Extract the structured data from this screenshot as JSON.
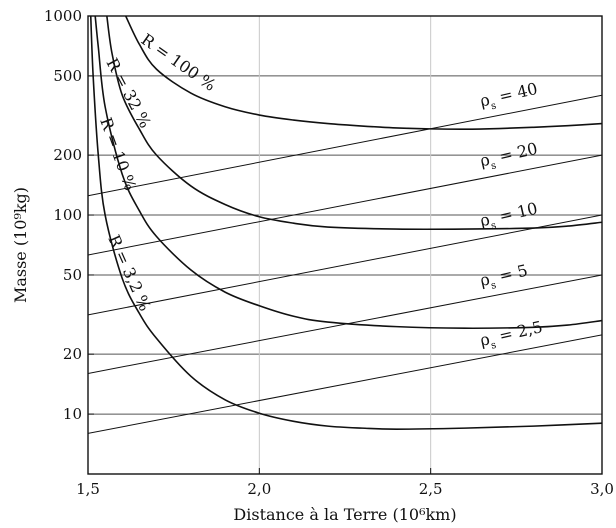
{
  "chart_data": {
    "type": "line",
    "xlabel": "Distance à la Terre (10⁶km)",
    "ylabel": "Masse (10⁹kg)",
    "xlim": [
      1.5,
      3.0
    ],
    "ylim": [
      5,
      1000
    ],
    "yscale": "log",
    "x_ticks": [
      1.5,
      2.0,
      2.5,
      3.0
    ],
    "x_tick_labels": [
      "1,5",
      "2,0",
      "2,5",
      "3,0"
    ],
    "y_ticks": [
      10,
      20,
      50,
      100,
      200,
      500,
      1000
    ],
    "y_tick_labels": [
      "10",
      "20",
      "50",
      "100",
      "200",
      "500",
      "1000"
    ],
    "y_gridlines": [
      10,
      20,
      50,
      100,
      200,
      500
    ],
    "x_gridlines": [
      2.0,
      2.5
    ],
    "series": [
      {
        "name": "R = 100 %",
        "kind": "curve",
        "x": [
          1.61,
          1.65,
          1.7,
          1.8,
          1.9,
          2.0,
          2.1,
          2.2,
          2.3,
          2.4,
          2.5,
          2.6,
          2.7,
          2.8,
          2.9,
          3.0
        ],
        "y": [
          1000,
          720,
          540,
          410,
          350,
          318,
          300,
          288,
          280,
          274,
          271,
          270,
          272,
          276,
          281,
          288
        ]
      },
      {
        "name": "R = 32 %",
        "kind": "curve",
        "x": [
          1.555,
          1.57,
          1.6,
          1.65,
          1.7,
          1.8,
          1.9,
          2.0,
          2.1,
          2.2,
          2.4,
          2.6,
          2.8,
          2.9,
          3.0
        ],
        "y": [
          1000,
          650,
          400,
          270,
          200,
          140,
          113,
          98,
          91,
          87,
          85,
          85,
          86,
          88,
          92
        ]
      },
      {
        "name": "R = 10 %",
        "kind": "curve",
        "x": [
          1.521,
          1.53,
          1.55,
          1.6,
          1.65,
          1.7,
          1.8,
          1.9,
          2.0,
          2.1,
          2.2,
          2.4,
          2.6,
          2.8,
          2.9,
          3.0
        ],
        "y": [
          1000,
          700,
          350,
          160,
          105,
          78,
          53,
          41,
          35,
          31,
          29,
          27.5,
          27,
          27.3,
          28,
          29.5
        ]
      },
      {
        "name": "R = 3,2 %",
        "kind": "curve",
        "x": [
          1.508,
          1.515,
          1.53,
          1.55,
          1.6,
          1.65,
          1.7,
          1.8,
          1.9,
          2.0,
          2.1,
          2.2,
          2.3,
          2.4,
          2.6,
          2.8,
          3.0
        ],
        "y": [
          1000,
          500,
          200,
          100,
          48,
          32,
          24,
          15.5,
          11.8,
          10.1,
          9.2,
          8.7,
          8.5,
          8.4,
          8.5,
          8.7,
          9.0
        ]
      },
      {
        "name": "ρs = 40",
        "kind": "line",
        "x": [
          1.5,
          3.0
        ],
        "y": [
          125,
          400
        ]
      },
      {
        "name": "ρs = 20",
        "kind": "line",
        "x": [
          1.5,
          3.0
        ],
        "y": [
          63,
          200
        ]
      },
      {
        "name": "ρs = 10",
        "kind": "line",
        "x": [
          1.5,
          3.0
        ],
        "y": [
          31.5,
          100
        ]
      },
      {
        "name": "ρs = 5",
        "kind": "line",
        "x": [
          1.5,
          3.0
        ],
        "y": [
          16,
          50
        ]
      },
      {
        "name": "ρs = 2,5",
        "kind": "line",
        "x": [
          1.5,
          3.0
        ],
        "y": [
          8,
          25
        ]
      }
    ],
    "curve_labels": [
      {
        "text": "R = 100 %",
        "angle": 35
      },
      {
        "text": "R = 32 %",
        "angle": 62
      },
      {
        "text": "R = 10 %",
        "angle": 70
      },
      {
        "text": "R = 3,2 %",
        "angle": 66
      }
    ],
    "line_labels": [
      {
        "base": "ρ",
        "sub": "s",
        "rest": " = 40"
      },
      {
        "base": "ρ",
        "sub": "s",
        "rest": " = 20"
      },
      {
        "base": "ρ",
        "sub": "s",
        "rest": " = 10"
      },
      {
        "base": "ρ",
        "sub": "s",
        "rest": " = 5"
      },
      {
        "base": "ρ",
        "sub": "s",
        "rest": " = 2,5"
      }
    ],
    "grid": true,
    "legend": "none"
  }
}
